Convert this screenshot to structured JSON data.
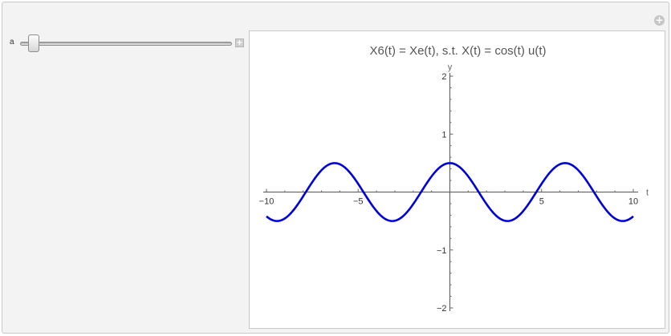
{
  "window": {
    "plus_glyph": "+"
  },
  "controls": {
    "slider": {
      "label": "a",
      "value_fraction": 0.04,
      "increment_glyph": "+"
    }
  },
  "chart_data": {
    "type": "line",
    "title": "X6(t) = Xe(t), s.t. X(t) = cos(t) u(t)",
    "xlabel": "t",
    "ylabel": "y",
    "xlim": [
      -10,
      10
    ],
    "ylim": [
      -2,
      2
    ],
    "xticks": [
      -10,
      -5,
      5,
      10
    ],
    "xtick_labels": [
      "−10",
      "−5",
      "5",
      "10"
    ],
    "yticks": [
      -2,
      -1,
      1,
      2
    ],
    "ytick_labels": [
      "−2",
      "−1",
      "1",
      "2"
    ],
    "grid": false,
    "series": [
      {
        "function": "0.5*cos(t)",
        "color": "#0000dd",
        "x_range": [
          -10,
          10
        ]
      }
    ]
  }
}
